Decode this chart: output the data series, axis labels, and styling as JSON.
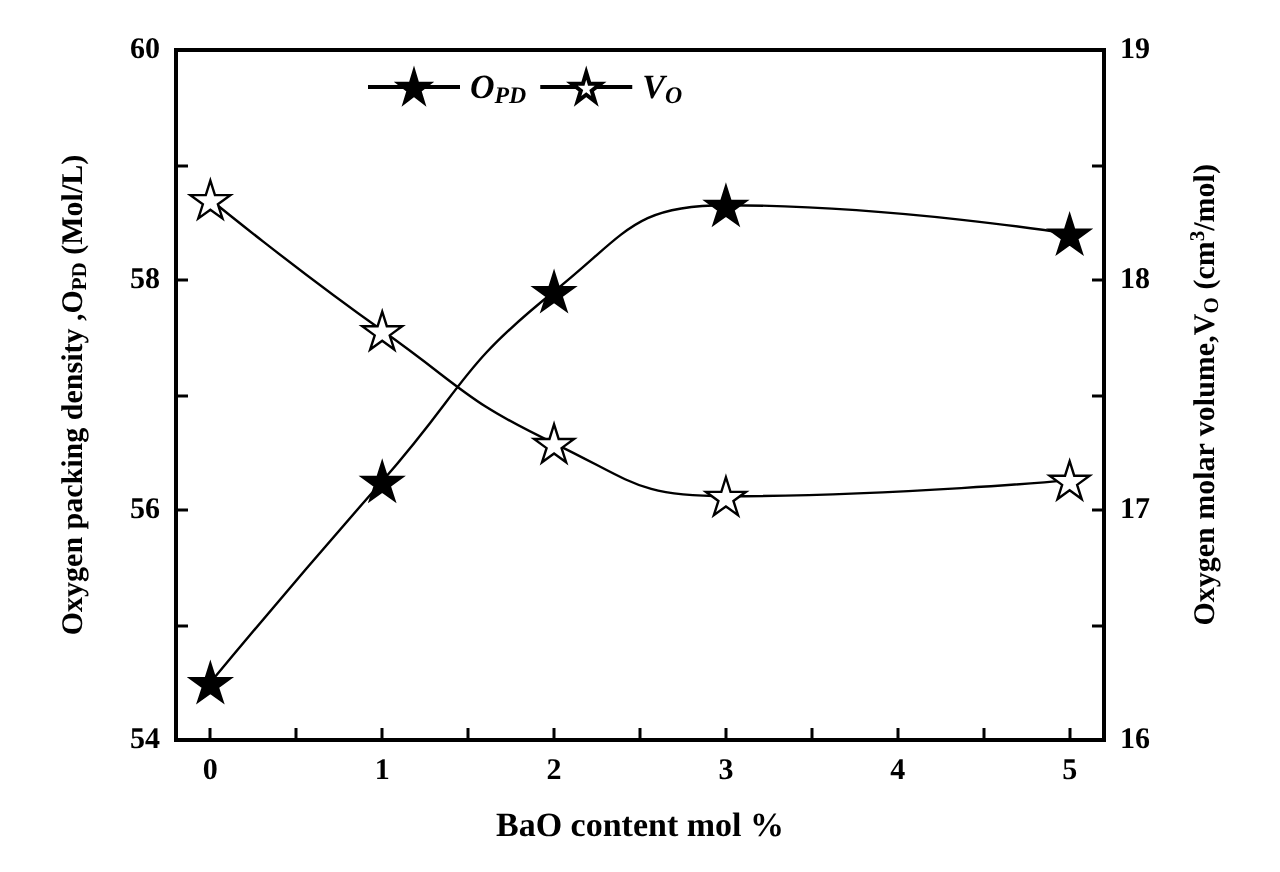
{
  "chart_data": {
    "type": "line",
    "xlabel": "BaO content mol %",
    "ylabel": "Oxygen packing density ,O$_{PD}$ (Mol/L)",
    "y2label": "Oxygen molar volume,V$_{O}$ (cm$^{3}$/mol)",
    "x": [
      0,
      1,
      2,
      3,
      5
    ],
    "series": [
      {
        "name": "O$_{PD}$",
        "color": "#000000",
        "values": [
          54.5,
          56.25,
          57.9,
          58.65,
          58.4
        ]
      },
      {
        "name": "V$_{O}$",
        "color": "#ffffff",
        "axis": "y2",
        "values": [
          18.35,
          17.78,
          17.29,
          17.06,
          17.13
        ]
      }
    ],
    "xlim": [
      -0.2,
      5.2
    ],
    "xticks": [
      0,
      {
        "value": 0.5,
        "label": null
      },
      1,
      {
        "value": 1.5,
        "label": null
      },
      2,
      {
        "value": 2.5,
        "label": null
      },
      3,
      {
        "value": 3.5,
        "label": null
      },
      4,
      {
        "value": 4.5,
        "label": null
      },
      5
    ],
    "ylim": [
      54,
      60
    ],
    "yticks": [
      54,
      {
        "value": 55,
        "label": null
      },
      56,
      {
        "value": 57,
        "label": null
      },
      58,
      {
        "value": 59,
        "label": null
      },
      60
    ],
    "y2lim": [
      16,
      19
    ],
    "y2ticks": [
      16,
      {
        "value": 16.5,
        "label": null
      },
      17,
      {
        "value": 17.5,
        "label": null
      },
      18,
      {
        "value": 18.5,
        "label": null
      },
      19
    ],
    "marker": "star",
    "legend": "top",
    "grid": false
  }
}
